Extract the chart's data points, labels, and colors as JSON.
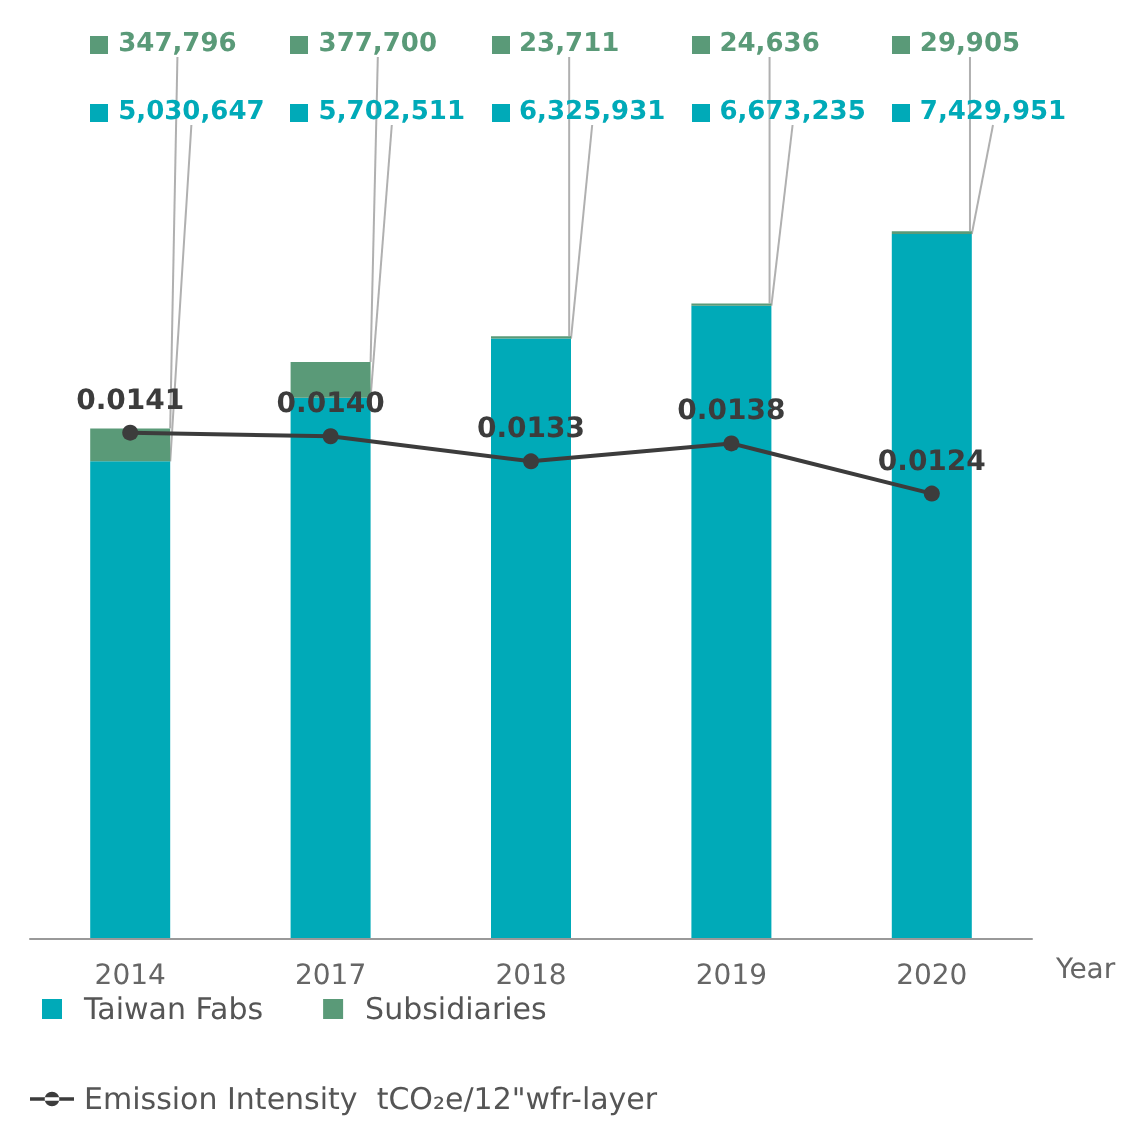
{
  "chart_data": {
    "type": "bar",
    "stacked": true,
    "xlabel": "Year",
    "categories": [
      "2014",
      "2017",
      "2018",
      "2019",
      "2020"
    ],
    "series": [
      {
        "name": "Taiwan Fabs",
        "color": "#00aab8",
        "values": [
          5030647,
          5702511,
          6325931,
          6673235,
          7429951
        ],
        "value_labels": [
          "5,030,647",
          "5,702,511",
          "6,325,931",
          "6,673,235",
          "7,429,951"
        ]
      },
      {
        "name": "Subsidiaries",
        "color": "#5a9a78",
        "values": [
          347796,
          377700,
          23711,
          24636,
          29905
        ],
        "value_labels": [
          "347,796",
          "377,700",
          "23,711",
          "24,636",
          "29,905"
        ]
      },
      {
        "name": "Emission Intensity  tCO₂e/12\"wfr-layer",
        "type": "line",
        "axis": "y2",
        "color": "#3c3c3c",
        "values": [
          0.0141,
          0.014,
          0.0133,
          0.0138,
          0.0124
        ],
        "marker": "circle",
        "value_labels": [
          "0.0141",
          "0.0140",
          "0.0133",
          "0.0138",
          "0.0124"
        ]
      }
    ],
    "legend": "bottom"
  }
}
